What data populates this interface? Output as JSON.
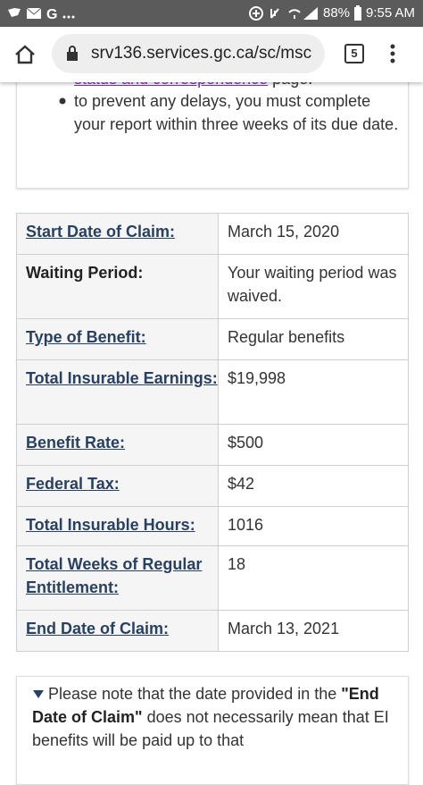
{
  "status_bar": {
    "battery": "88%",
    "time": "9:55 AM"
  },
  "browser": {
    "url": "srv136.services.gc.ca/sc/msc",
    "tab_count": "5"
  },
  "intro": {
    "link_text": "status and correspondence",
    "link_suffix": "page.",
    "bullet": "to prevent any delays, you must complete your report within three weeks of its due date."
  },
  "table": {
    "rows": [
      [
        "Start Date of Claim:",
        "March 15, 2020"
      ],
      [
        "Waiting Period:",
        "Your waiting period was waived."
      ],
      [
        "Type of Benefit:",
        "Regular benefits"
      ],
      [
        "Total Insurable Earnings:",
        "$19,998"
      ],
      [
        "Benefit Rate:",
        "$500"
      ],
      [
        "Federal Tax:",
        "$42"
      ],
      [
        "Total Insurable Hours:",
        "1016"
      ],
      [
        "Total Weeks of Regular Entitlement:",
        "18"
      ],
      [
        "End Date of Claim:",
        "March 13, 2021"
      ]
    ]
  },
  "note": {
    "before": "Please note that the date provided in the",
    "emphasis": "\"End Date of Claim\"",
    "after": "does not necessarily mean that EI benefits will be paid up to that"
  }
}
